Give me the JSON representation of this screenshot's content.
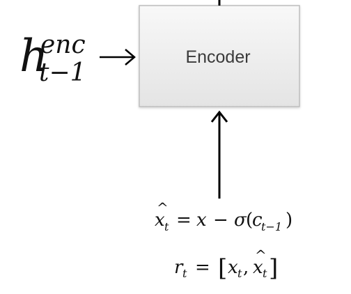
{
  "encoder_box": {
    "label": "Encoder"
  },
  "hidden_input": {
    "base": "h",
    "superscript": "enc",
    "subscript": "t−1"
  },
  "equation_xhat": {
    "lhs_base": "x",
    "lhs_hat": "^",
    "lhs_sub": "t",
    "equals": "=",
    "term_x": "x",
    "minus": "−",
    "sigma": "σ",
    "open_paren": "(",
    "c_base": "c",
    "c_sub": "t−1",
    "close_paren": ")"
  },
  "equation_r": {
    "lhs_base": "r",
    "lhs_sub": "t",
    "equals": "=",
    "open_bracket": "[",
    "x1_base": "x",
    "x1_sub": "t",
    "comma": ",",
    "x2_base": "x",
    "x2_hat": "^",
    "x2_sub": "t",
    "close_bracket": "]"
  },
  "colors": {
    "box_fill_top": "#f7f7f7",
    "box_fill_bottom": "#e6e6e6",
    "box_border": "#bdbdbd",
    "line": "#000000",
    "label_text": "#3a3a3a",
    "math_text": "#111111"
  },
  "icons": {
    "left_arrow": "arrow-right-icon",
    "bottom_arrow": "arrow-up-icon",
    "top_line": "line-up-icon"
  }
}
